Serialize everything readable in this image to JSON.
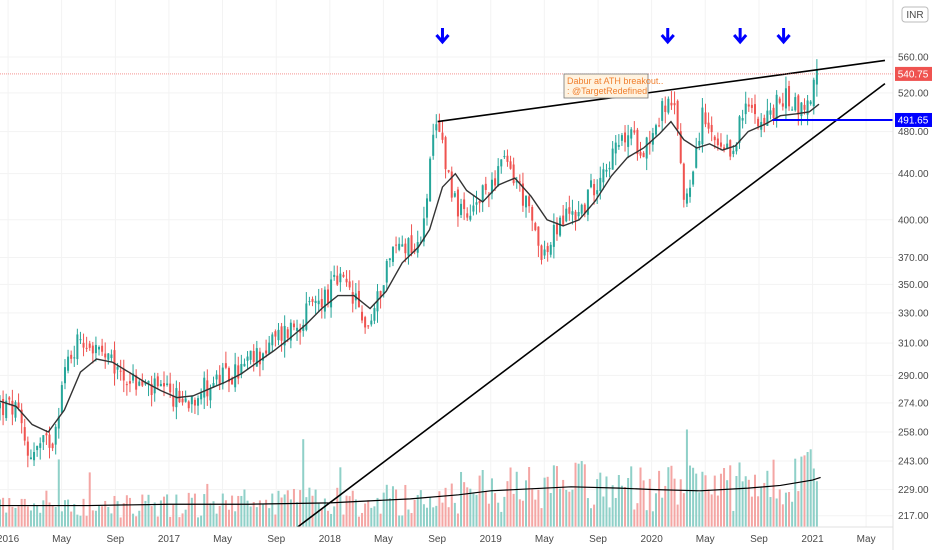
{
  "chart_data": {
    "type": "candlestick",
    "currency_label": "INR",
    "y_scale": "log",
    "ylim": [
      212,
      630
    ],
    "y_ticks": [
      "560.00",
      "520.00",
      "480.00",
      "440.00",
      "400.00",
      "370.00",
      "350.00",
      "330.00",
      "310.00",
      "290.00",
      "274.00",
      "258.00",
      "243.00",
      "229.00",
      "217.00"
    ],
    "x_ticks": [
      {
        "label": "2016",
        "t": 2016.0
      },
      {
        "label": "May",
        "t": 2016.333
      },
      {
        "label": "Sep",
        "t": 2016.667
      },
      {
        "label": "2017",
        "t": 2017.0
      },
      {
        "label": "May",
        "t": 2017.333
      },
      {
        "label": "Sep",
        "t": 2017.667
      },
      {
        "label": "2018",
        "t": 2018.0
      },
      {
        "label": "May",
        "t": 2018.333
      },
      {
        "label": "Sep",
        "t": 2018.667
      },
      {
        "label": "2019",
        "t": 2019.0
      },
      {
        "label": "May",
        "t": 2019.333
      },
      {
        "label": "Sep",
        "t": 2019.667
      },
      {
        "label": "2020",
        "t": 2020.0
      },
      {
        "label": "May",
        "t": 2020.333
      },
      {
        "label": "Sep",
        "t": 2020.667
      },
      {
        "label": "2021",
        "t": 2021.0
      },
      {
        "label": "May",
        "t": 2021.333
      }
    ],
    "xlim": [
      2015.95,
      2021.5
    ],
    "price_key_points": [
      [
        2015.95,
        272
      ],
      [
        2016.05,
        270
      ],
      [
        2016.12,
        247
      ],
      [
        2016.2,
        250
      ],
      [
        2016.28,
        255
      ],
      [
        2016.36,
        296
      ],
      [
        2016.45,
        315
      ],
      [
        2016.55,
        305
      ],
      [
        2016.65,
        295
      ],
      [
        2016.72,
        290
      ],
      [
        2016.8,
        285
      ],
      [
        2016.9,
        282
      ],
      [
        2017.0,
        278
      ],
      [
        2017.1,
        275
      ],
      [
        2017.2,
        282
      ],
      [
        2017.3,
        287
      ],
      [
        2017.4,
        290
      ],
      [
        2017.5,
        298
      ],
      [
        2017.6,
        306
      ],
      [
        2017.7,
        316
      ],
      [
        2017.8,
        323
      ],
      [
        2017.9,
        335
      ],
      [
        2018.0,
        345
      ],
      [
        2018.05,
        353
      ],
      [
        2018.1,
        347
      ],
      [
        2018.15,
        340
      ],
      [
        2018.2,
        325
      ],
      [
        2018.25,
        322
      ],
      [
        2018.3,
        340
      ],
      [
        2018.35,
        365
      ],
      [
        2018.42,
        380
      ],
      [
        2018.5,
        382
      ],
      [
        2018.55,
        375
      ],
      [
        2018.6,
        420
      ],
      [
        2018.64,
        465
      ],
      [
        2018.67,
        487
      ],
      [
        2018.7,
        470
      ],
      [
        2018.75,
        430
      ],
      [
        2018.8,
        410
      ],
      [
        2018.85,
        395
      ],
      [
        2018.9,
        410
      ],
      [
        2018.95,
        420
      ],
      [
        2019.0,
        432
      ],
      [
        2019.05,
        445
      ],
      [
        2019.1,
        448
      ],
      [
        2019.15,
        436
      ],
      [
        2019.2,
        420
      ],
      [
        2019.25,
        398
      ],
      [
        2019.3,
        380
      ],
      [
        2019.35,
        372
      ],
      [
        2019.4,
        390
      ],
      [
        2019.45,
        400
      ],
      [
        2019.5,
        408
      ],
      [
        2019.55,
        405
      ],
      [
        2019.6,
        418
      ],
      [
        2019.65,
        432
      ],
      [
        2019.7,
        448
      ],
      [
        2019.75,
        455
      ],
      [
        2019.8,
        465
      ],
      [
        2019.85,
        478
      ],
      [
        2019.9,
        470
      ],
      [
        2019.95,
        466
      ],
      [
        2020.0,
        478
      ],
      [
        2020.05,
        495
      ],
      [
        2020.08,
        510
      ],
      [
        2020.12,
        502
      ],
      [
        2020.16,
        490
      ],
      [
        2020.2,
        415
      ],
      [
        2020.24,
        435
      ],
      [
        2020.28,
        470
      ],
      [
        2020.32,
        495
      ],
      [
        2020.36,
        475
      ],
      [
        2020.4,
        465
      ],
      [
        2020.45,
        455
      ],
      [
        2020.5,
        460
      ],
      [
        2020.55,
        490
      ],
      [
        2020.6,
        505
      ],
      [
        2020.65,
        500
      ],
      [
        2020.7,
        490
      ],
      [
        2020.75,
        500
      ],
      [
        2020.8,
        512
      ],
      [
        2020.85,
        515
      ],
      [
        2020.9,
        508
      ],
      [
        2020.95,
        500
      ],
      [
        2021.0,
        525
      ],
      [
        2021.03,
        540.75
      ]
    ],
    "moving_average": [
      [
        2015.95,
        275
      ],
      [
        2016.05,
        272
      ],
      [
        2016.15,
        262
      ],
      [
        2016.25,
        258
      ],
      [
        2016.35,
        270
      ],
      [
        2016.45,
        292
      ],
      [
        2016.55,
        300
      ],
      [
        2016.65,
        298
      ],
      [
        2016.75,
        292
      ],
      [
        2016.85,
        286
      ],
      [
        2016.95,
        281
      ],
      [
        2017.05,
        277
      ],
      [
        2017.15,
        278
      ],
      [
        2017.25,
        282
      ],
      [
        2017.35,
        286
      ],
      [
        2017.45,
        291
      ],
      [
        2017.55,
        298
      ],
      [
        2017.65,
        305
      ],
      [
        2017.75,
        313
      ],
      [
        2017.85,
        322
      ],
      [
        2017.95,
        333
      ],
      [
        2018.05,
        342
      ],
      [
        2018.15,
        342
      ],
      [
        2018.25,
        333
      ],
      [
        2018.35,
        345
      ],
      [
        2018.45,
        366
      ],
      [
        2018.55,
        378
      ],
      [
        2018.62,
        392
      ],
      [
        2018.7,
        428
      ],
      [
        2018.78,
        440
      ],
      [
        2018.85,
        425
      ],
      [
        2018.95,
        415
      ],
      [
        2019.05,
        430
      ],
      [
        2019.15,
        436
      ],
      [
        2019.25,
        420
      ],
      [
        2019.35,
        400
      ],
      [
        2019.45,
        395
      ],
      [
        2019.55,
        400
      ],
      [
        2019.65,
        416
      ],
      [
        2019.75,
        438
      ],
      [
        2019.85,
        455
      ],
      [
        2019.95,
        464
      ],
      [
        2020.05,
        478
      ],
      [
        2020.12,
        490
      ],
      [
        2020.2,
        472
      ],
      [
        2020.28,
        464
      ],
      [
        2020.36,
        468
      ],
      [
        2020.44,
        462
      ],
      [
        2020.52,
        466
      ],
      [
        2020.6,
        480
      ],
      [
        2020.7,
        487
      ],
      [
        2020.8,
        496
      ],
      [
        2020.9,
        498
      ],
      [
        2020.98,
        500
      ],
      [
        2021.04,
        508
      ]
    ],
    "volume_max": 100,
    "volume_avg": [
      [
        2015.95,
        16
      ],
      [
        2016.5,
        16
      ],
      [
        2017.0,
        17
      ],
      [
        2017.5,
        17
      ],
      [
        2018.0,
        18
      ],
      [
        2018.5,
        21
      ],
      [
        2018.8,
        24
      ],
      [
        2019.0,
        27
      ],
      [
        2019.5,
        30
      ],
      [
        2019.8,
        29
      ],
      [
        2020.0,
        28
      ],
      [
        2020.3,
        27
      ],
      [
        2020.6,
        29
      ],
      [
        2020.8,
        31
      ],
      [
        2021.0,
        35
      ],
      [
        2021.05,
        37
      ]
    ],
    "annotations": {
      "note": [
        "Dabur at ATH breakout..",
        ": @TargetRedefined"
      ],
      "price_tag": "540.75",
      "level_tag": "491.65",
      "level_value": 491.65,
      "arrows_t": [
        2018.7,
        2020.1,
        2020.55,
        2020.82
      ],
      "resistance_line": [
        [
          2018.67,
          490
        ],
        [
          2021.45,
          556
        ]
      ],
      "support_line": [
        [
          2017.8,
          212
        ],
        [
          2021.45,
          530
        ]
      ],
      "horizontal_level": [
        [
          2020.75,
          491.65
        ],
        [
          2021.5,
          491.65
        ]
      ],
      "colors": {
        "up": "#26a69a",
        "down": "#ef5350",
        "vol_up": "#8fd0c8",
        "vol_down": "#f4a6a4",
        "line": "#000000",
        "ma": "#333333",
        "blue": "#0000ff",
        "tag_red": "#ef5350",
        "tag_blue": "#0000ff",
        "note": "#f08030"
      }
    }
  }
}
